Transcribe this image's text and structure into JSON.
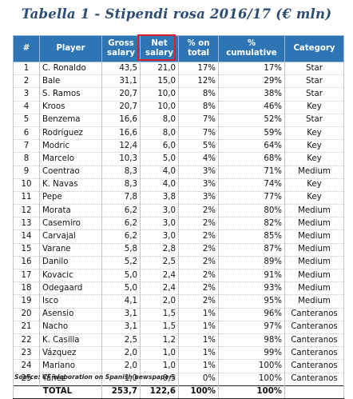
{
  "title": "Tabella 1 - Stipendi rosa 2016/17 (€ mln)",
  "headers": {
    "num": "#",
    "player": "Player",
    "gross_1": "Gross",
    "gross_2": "salary",
    "net_1": "Net",
    "net_2": "salary",
    "pct_1": "% on",
    "pct_2": "total",
    "cum_1": "%",
    "cum_2": "cumulative",
    "category": "Category"
  },
  "rows": [
    {
      "num": "1",
      "player": "C. Ronaldo",
      "gross": "43,5",
      "net": "21,0",
      "pct": "17%",
      "cum": "17%",
      "category": "Star"
    },
    {
      "num": "2",
      "player": "Bale",
      "gross": "31,1",
      "net": "15,0",
      "pct": "12%",
      "cum": "29%",
      "category": "Star"
    },
    {
      "num": "3",
      "player": "S. Ramos",
      "gross": "20,7",
      "net": "10,0",
      "pct": "8%",
      "cum": "38%",
      "category": "Star"
    },
    {
      "num": "4",
      "player": "Kroos",
      "gross": "20,7",
      "net": "10,0",
      "pct": "8%",
      "cum": "46%",
      "category": "Key"
    },
    {
      "num": "5",
      "player": "Benzema",
      "gross": "16,6",
      "net": "8,0",
      "pct": "7%",
      "cum": "52%",
      "category": "Star"
    },
    {
      "num": "6",
      "player": "Rodríguez",
      "gross": "16,6",
      "net": "8,0",
      "pct": "7%",
      "cum": "59%",
      "category": "Key"
    },
    {
      "num": "7",
      "player": "Modric",
      "gross": "12,4",
      "net": "6,0",
      "pct": "5%",
      "cum": "64%",
      "category": "Key"
    },
    {
      "num": "8",
      "player": "Marcelo",
      "gross": "10,3",
      "net": "5,0",
      "pct": "4%",
      "cum": "68%",
      "category": "Key"
    },
    {
      "num": "9",
      "player": "Coentrao",
      "gross": "8,3",
      "net": "4,0",
      "pct": "3%",
      "cum": "71%",
      "category": "Medium"
    },
    {
      "num": "10",
      "player": "K. Navas",
      "gross": "8,3",
      "net": "4,0",
      "pct": "3%",
      "cum": "74%",
      "category": "Key"
    },
    {
      "num": "11",
      "player": "Pepe",
      "gross": "7,8",
      "net": "3,8",
      "pct": "3%",
      "cum": "77%",
      "category": "Key"
    },
    {
      "num": "12",
      "player": "Morata",
      "gross": "6,2",
      "net": "3,0",
      "pct": "2%",
      "cum": "80%",
      "category": "Medium"
    },
    {
      "num": "13",
      "player": "Casemiro",
      "gross": "6,2",
      "net": "3,0",
      "pct": "2%",
      "cum": "82%",
      "category": "Medium"
    },
    {
      "num": "14",
      "player": "Carvajal",
      "gross": "6,2",
      "net": "3,0",
      "pct": "2%",
      "cum": "85%",
      "category": "Medium"
    },
    {
      "num": "15",
      "player": "Varane",
      "gross": "5,8",
      "net": "2,8",
      "pct": "2%",
      "cum": "87%",
      "category": "Medium"
    },
    {
      "num": "16",
      "player": "Danilo",
      "gross": "5,2",
      "net": "2,5",
      "pct": "2%",
      "cum": "89%",
      "category": "Medium"
    },
    {
      "num": "17",
      "player": "Kovacic",
      "gross": "5,0",
      "net": "2,4",
      "pct": "2%",
      "cum": "91%",
      "category": "Medium"
    },
    {
      "num": "18",
      "player": "Odegaard",
      "gross": "5,0",
      "net": "2,4",
      "pct": "2%",
      "cum": "93%",
      "category": "Medium"
    },
    {
      "num": "19",
      "player": "Isco",
      "gross": "4,1",
      "net": "2,0",
      "pct": "2%",
      "cum": "95%",
      "category": "Medium"
    },
    {
      "num": "20",
      "player": "Asensio",
      "gross": "3,1",
      "net": "1,5",
      "pct": "1%",
      "cum": "96%",
      "category": "Canteranos"
    },
    {
      "num": "21",
      "player": "Nacho",
      "gross": "3,1",
      "net": "1,5",
      "pct": "1%",
      "cum": "97%",
      "category": "Canteranos"
    },
    {
      "num": "22",
      "player": "K. Casilla",
      "gross": "2,5",
      "net": "1,2",
      "pct": "1%",
      "cum": "98%",
      "category": "Canteranos"
    },
    {
      "num": "23",
      "player": "Vázquez",
      "gross": "2,0",
      "net": "1,0",
      "pct": "1%",
      "cum": "99%",
      "category": "Canteranos"
    },
    {
      "num": "24",
      "player": "Mariano",
      "gross": "2,0",
      "net": "1,0",
      "pct": "1%",
      "cum": "100%",
      "category": "Canteranos"
    },
    {
      "num": "25",
      "player": "Yáñez",
      "gross": "1,0",
      "net": "0,5",
      "pct": "0%",
      "cum": "100%",
      "category": "Canteranos"
    }
  ],
  "total": {
    "label": "TOTAL",
    "gross": "253,7",
    "net": "122,6",
    "pct": "100%",
    "cum": "100%"
  },
  "source": "Source: CF elaboration on Spanish newspapers",
  "colors": {
    "header_bg": "#2e75b6",
    "title": "#2e4d75",
    "highlight": "#d9202a"
  }
}
